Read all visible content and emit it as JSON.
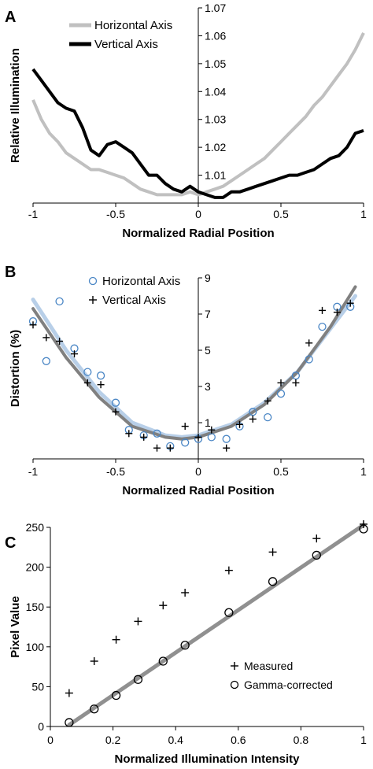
{
  "chart_data": [
    {
      "type": "line",
      "panel_label": "A",
      "xlabel": "Normalized Radial Position",
      "ylabel": "Relative Illumination",
      "xlim": [
        -1,
        1
      ],
      "ylim": [
        1.0,
        1.07
      ],
      "x_ticks": [
        "-1",
        "-0.5",
        "0",
        "0.5",
        "1"
      ],
      "y_ticks": [
        "1.01",
        "1.02",
        "1.03",
        "1.04",
        "1.05",
        "1.06",
        "1.07"
      ],
      "legend_position": "top-left",
      "series": [
        {
          "name": "Horizontal Axis",
          "color": "#c0c0c0",
          "x": [
            -1.0,
            -0.95,
            -0.9,
            -0.85,
            -0.8,
            -0.75,
            -0.7,
            -0.65,
            -0.6,
            -0.55,
            -0.5,
            -0.45,
            -0.4,
            -0.35,
            -0.3,
            -0.25,
            -0.2,
            -0.15,
            -0.1,
            -0.05,
            0.0,
            0.05,
            0.1,
            0.15,
            0.2,
            0.25,
            0.3,
            0.35,
            0.4,
            0.45,
            0.5,
            0.55,
            0.6,
            0.65,
            0.7,
            0.75,
            0.8,
            0.85,
            0.9,
            0.95,
            1.0
          ],
          "values": [
            1.037,
            1.03,
            1.025,
            1.022,
            1.018,
            1.016,
            1.014,
            1.012,
            1.012,
            1.011,
            1.01,
            1.009,
            1.007,
            1.005,
            1.004,
            1.003,
            1.003,
            1.003,
            1.003,
            1.004,
            1.003,
            1.004,
            1.005,
            1.006,
            1.008,
            1.01,
            1.012,
            1.014,
            1.016,
            1.019,
            1.022,
            1.025,
            1.028,
            1.031,
            1.035,
            1.038,
            1.042,
            1.046,
            1.05,
            1.055,
            1.061
          ]
        },
        {
          "name": "Vertical Axis",
          "color": "#000000",
          "x": [
            -1.0,
            -0.95,
            -0.9,
            -0.85,
            -0.8,
            -0.75,
            -0.7,
            -0.65,
            -0.6,
            -0.55,
            -0.5,
            -0.45,
            -0.4,
            -0.35,
            -0.3,
            -0.25,
            -0.2,
            -0.15,
            -0.1,
            -0.05,
            0.0,
            0.05,
            0.1,
            0.15,
            0.2,
            0.25,
            0.3,
            0.35,
            0.4,
            0.45,
            0.5,
            0.55,
            0.6,
            0.65,
            0.7,
            0.75,
            0.8,
            0.85,
            0.9,
            0.95,
            1.0
          ],
          "values": [
            1.048,
            1.044,
            1.04,
            1.036,
            1.034,
            1.033,
            1.027,
            1.019,
            1.017,
            1.021,
            1.022,
            1.02,
            1.018,
            1.014,
            1.01,
            1.01,
            1.007,
            1.005,
            1.004,
            1.006,
            1.004,
            1.003,
            1.002,
            1.002,
            1.004,
            1.004,
            1.005,
            1.006,
            1.007,
            1.008,
            1.009,
            1.01,
            1.01,
            1.011,
            1.012,
            1.014,
            1.016,
            1.017,
            1.02,
            1.025,
            1.026
          ]
        }
      ]
    },
    {
      "type": "scatter",
      "panel_label": "B",
      "xlabel": "Normalized Radial Position",
      "ylabel": "Distortion (%)",
      "xlim": [
        -1,
        1
      ],
      "ylim": [
        -1,
        9
      ],
      "x_ticks": [
        "-1",
        "-0.5",
        "0",
        "0.5",
        "1"
      ],
      "y_ticks": [
        "1",
        "3",
        "5",
        "7",
        "9"
      ],
      "legend_position": "top-left",
      "series": [
        {
          "name": "Horizontal Axis",
          "marker": "circle",
          "color": "#4a86c5",
          "x": [
            -1.0,
            -0.92,
            -0.84,
            -0.75,
            -0.67,
            -0.59,
            -0.5,
            -0.42,
            -0.33,
            -0.25,
            -0.17,
            -0.08,
            0.0,
            0.08,
            0.17,
            0.25,
            0.33,
            0.42,
            0.5,
            0.59,
            0.67,
            0.75,
            0.84,
            0.92
          ],
          "values": [
            6.6,
            4.4,
            7.7,
            5.1,
            3.8,
            3.6,
            2.1,
            0.6,
            0.3,
            0.4,
            -0.3,
            -0.1,
            0.1,
            0.2,
            0.1,
            0.8,
            1.6,
            1.3,
            2.6,
            3.6,
            4.5,
            6.3,
            7.4,
            7.4
          ]
        },
        {
          "name": "Vertical Axis",
          "marker": "plus",
          "color": "#000000",
          "x": [
            -1.0,
            -0.92,
            -0.84,
            -0.75,
            -0.67,
            -0.59,
            -0.5,
            -0.42,
            -0.33,
            -0.25,
            -0.17,
            -0.08,
            0.0,
            0.08,
            0.17,
            0.25,
            0.33,
            0.42,
            0.5,
            0.59,
            0.67,
            0.75,
            0.84,
            0.92
          ],
          "values": [
            6.4,
            5.7,
            5.5,
            4.8,
            3.2,
            3.1,
            1.6,
            0.4,
            0.2,
            -0.4,
            -0.4,
            0.8,
            0.2,
            0.6,
            -0.4,
            0.9,
            1.2,
            2.2,
            3.2,
            3.2,
            5.4,
            7.2,
            7.1,
            7.6
          ]
        }
      ],
      "fits": [
        {
          "color": "#b8cfe8",
          "x": [
            -1.0,
            -0.8,
            -0.6,
            -0.4,
            -0.2,
            -0.1,
            0.0,
            0.2,
            0.4,
            0.6,
            0.8,
            0.95
          ],
          "values": [
            7.8,
            5.0,
            2.7,
            1.0,
            0.3,
            0.2,
            0.3,
            0.9,
            2.1,
            3.8,
            6.2,
            8.0
          ]
        },
        {
          "color": "#808080",
          "x": [
            -1.0,
            -0.8,
            -0.6,
            -0.4,
            -0.2,
            -0.1,
            0.0,
            0.2,
            0.4,
            0.6,
            0.8,
            0.95
          ],
          "values": [
            7.3,
            4.6,
            2.4,
            0.8,
            0.2,
            0.1,
            0.2,
            0.8,
            2.0,
            3.8,
            6.3,
            8.5
          ]
        }
      ]
    },
    {
      "type": "scatter",
      "panel_label": "C",
      "xlabel": "Normalized Illumination Intensity",
      "ylabel": "Pixel Value",
      "xlim": [
        0,
        1
      ],
      "ylim": [
        0,
        250
      ],
      "x_ticks": [
        "0",
        "0.2",
        "0.4",
        "0.6",
        "0.8",
        "1"
      ],
      "y_ticks": [
        "0",
        "50",
        "100",
        "150",
        "200",
        "250"
      ],
      "legend_position": "bottom-right",
      "series": [
        {
          "name": "Measured",
          "marker": "plus",
          "color": "#000000",
          "x": [
            0.06,
            0.14,
            0.21,
            0.28,
            0.36,
            0.43,
            0.57,
            0.71,
            0.85,
            1.0
          ],
          "values": [
            42,
            82,
            109,
            132,
            152,
            168,
            196,
            219,
            236,
            254
          ]
        },
        {
          "name": "Gamma-corrected",
          "marker": "circle",
          "color": "#000000",
          "x": [
            0.06,
            0.14,
            0.21,
            0.28,
            0.36,
            0.43,
            0.57,
            0.71,
            0.85,
            1.0
          ],
          "values": [
            5,
            22,
            39,
            59,
            82,
            102,
            143,
            182,
            215,
            248
          ]
        }
      ],
      "fits": [
        {
          "color": "#909090",
          "x": [
            0.06,
            1.0
          ],
          "values": [
            2,
            253
          ]
        }
      ]
    }
  ]
}
